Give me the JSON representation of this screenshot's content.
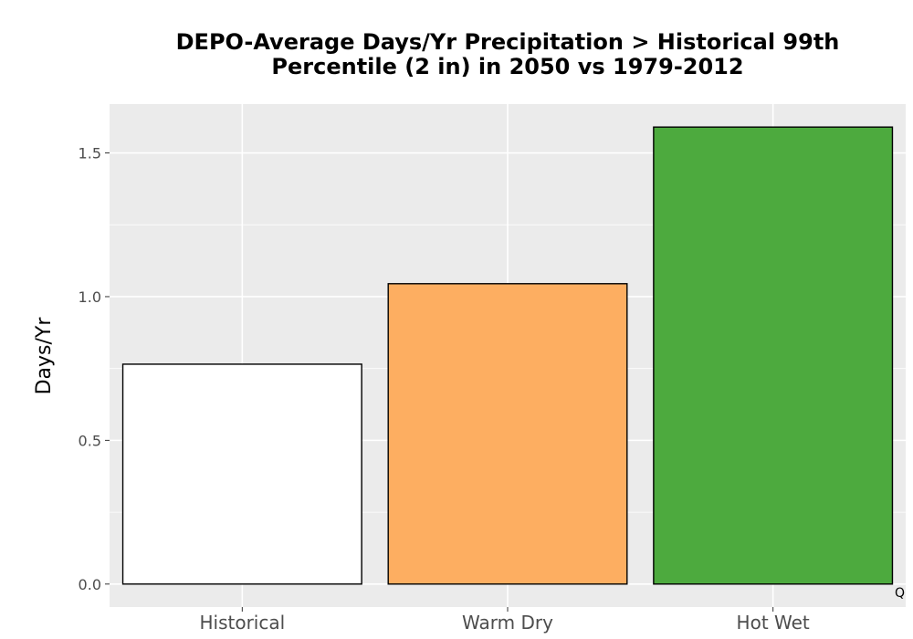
{
  "chart_data": {
    "type": "bar",
    "title_lines": [
      "DEPO-Average Days/Yr Precipitation > Historical 99th",
      "Percentile (2 in) in 2050 vs 1979-2012"
    ],
    "xlabel": "",
    "ylabel": "Days/Yr",
    "categories": [
      "Historical",
      "Warm Dry",
      "Hot Wet"
    ],
    "values": [
      0.765,
      1.045,
      1.59
    ],
    "bar_colors": [
      "#ffffff",
      "#fdae61",
      "#4daa3e"
    ],
    "bar_outline_color": "#000000",
    "ylim": [
      -0.08,
      1.67
    ],
    "yticks": [
      0.0,
      0.5,
      1.0,
      1.5
    ],
    "ytick_labels": [
      "0.0",
      "0.5",
      "1.0",
      "1.5"
    ],
    "grid": true,
    "panel_background": "#ebebeb",
    "grid_color": "#ffffff",
    "corner_mark": "Q"
  }
}
